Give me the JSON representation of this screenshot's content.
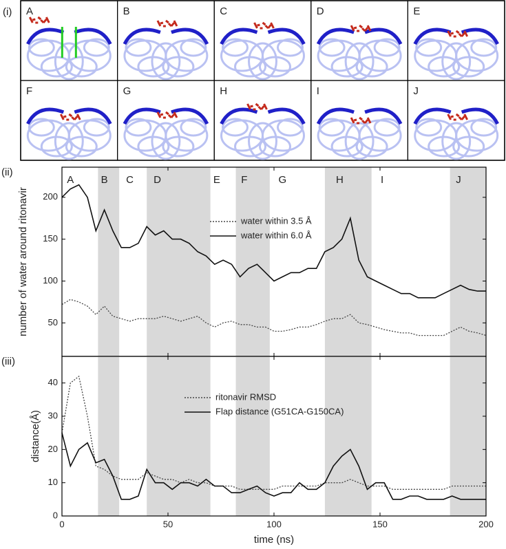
{
  "structures": {
    "label": "(i)",
    "frames": [
      "A",
      "B",
      "C",
      "D",
      "E",
      "F",
      "G",
      "H",
      "I",
      "J"
    ]
  },
  "chart_data": [
    {
      "type": "line",
      "label": "(ii)",
      "ylabel": "number of water around ritonavir",
      "xlim": [
        0,
        200
      ],
      "ylim": [
        10,
        236
      ],
      "yticks": [
        50,
        100,
        150,
        200
      ],
      "shaded": [
        [
          17,
          27
        ],
        [
          40,
          70
        ],
        [
          82,
          98
        ],
        [
          124,
          146
        ],
        [
          183,
          200
        ]
      ],
      "annotations": [
        {
          "text": "A",
          "x": 4
        },
        {
          "text": "B",
          "x": 20
        },
        {
          "text": "C",
          "x": 32
        },
        {
          "text": "D",
          "x": 45
        },
        {
          "text": "E",
          "x": 73
        },
        {
          "text": "F",
          "x": 86
        },
        {
          "text": "G",
          "x": 104
        },
        {
          "text": "H",
          "x": 131
        },
        {
          "text": "I",
          "x": 151
        },
        {
          "text": "J",
          "x": 187
        }
      ],
      "x": [
        0,
        4,
        8,
        12,
        16,
        20,
        24,
        28,
        32,
        36,
        40,
        44,
        48,
        52,
        56,
        60,
        64,
        68,
        72,
        76,
        80,
        84,
        88,
        92,
        96,
        100,
        104,
        108,
        112,
        116,
        120,
        124,
        128,
        132,
        136,
        140,
        144,
        148,
        152,
        156,
        160,
        164,
        168,
        172,
        176,
        180,
        184,
        188,
        192,
        196,
        200
      ],
      "series": [
        {
          "name": "water within 3.5 Å",
          "color": "#444444",
          "dash": "dotted",
          "values": [
            72,
            78,
            75,
            70,
            60,
            70,
            58,
            55,
            52,
            55,
            55,
            55,
            58,
            55,
            52,
            55,
            58,
            50,
            45,
            50,
            52,
            48,
            48,
            45,
            45,
            40,
            40,
            42,
            45,
            45,
            48,
            52,
            55,
            55,
            60,
            50,
            48,
            45,
            42,
            40,
            38,
            38,
            35,
            35,
            35,
            35,
            40,
            45,
            40,
            38,
            35
          ]
        },
        {
          "name": "water within 6.0 Å",
          "color": "#111111",
          "dash": "solid",
          "values": [
            200,
            210,
            215,
            200,
            160,
            185,
            160,
            140,
            140,
            145,
            165,
            155,
            160,
            150,
            150,
            145,
            135,
            130,
            120,
            125,
            120,
            105,
            115,
            120,
            110,
            100,
            105,
            110,
            110,
            115,
            115,
            135,
            140,
            150,
            175,
            125,
            105,
            100,
            95,
            90,
            85,
            85,
            80,
            80,
            80,
            85,
            90,
            95,
            90,
            88,
            88
          ]
        }
      ]
    },
    {
      "type": "line",
      "label": "(iii)",
      "ylabel": "distance(Å)",
      "xlabel": "time (ns)",
      "xlim": [
        0,
        200
      ],
      "ylim": [
        0,
        48
      ],
      "xticks": [
        0,
        50,
        100,
        150,
        200
      ],
      "yticks": [
        0,
        10,
        20,
        30,
        40
      ],
      "shaded": [
        [
          17,
          27
        ],
        [
          40,
          70
        ],
        [
          82,
          98
        ],
        [
          124,
          146
        ],
        [
          183,
          200
        ]
      ],
      "x": [
        0,
        4,
        8,
        12,
        16,
        20,
        24,
        28,
        32,
        36,
        40,
        44,
        48,
        52,
        56,
        60,
        64,
        68,
        72,
        76,
        80,
        84,
        88,
        92,
        96,
        100,
        104,
        108,
        112,
        116,
        120,
        124,
        128,
        132,
        136,
        140,
        144,
        148,
        152,
        156,
        160,
        164,
        168,
        172,
        176,
        180,
        184,
        188,
        192,
        196,
        200
      ],
      "series": [
        {
          "name": "ritonavir RMSD",
          "color": "#444444",
          "dash": "dotted",
          "values": [
            25,
            40,
            42,
            30,
            15,
            14,
            12,
            11,
            11,
            11,
            13,
            12,
            11,
            11,
            10,
            11,
            10,
            10,
            9,
            9,
            9,
            8,
            8,
            8,
            8,
            8,
            9,
            9,
            9,
            9,
            9,
            10,
            10,
            10,
            11,
            10,
            9,
            9,
            9,
            8,
            8,
            8,
            8,
            8,
            8,
            8,
            9,
            9,
            9,
            9,
            9
          ]
        },
        {
          "name": "Flap distance (G51CA-G150CA)",
          "color": "#111111",
          "dash": "solid",
          "values": [
            25,
            15,
            20,
            22,
            16,
            17,
            12,
            5,
            5,
            6,
            14,
            10,
            10,
            8,
            10,
            10,
            9,
            11,
            9,
            9,
            7,
            7,
            8,
            9,
            7,
            6,
            7,
            7,
            10,
            8,
            8,
            10,
            15,
            18,
            20,
            15,
            8,
            10,
            10,
            5,
            5,
            6,
            6,
            5,
            5,
            5,
            6,
            5,
            5,
            5,
            5
          ]
        }
      ]
    }
  ]
}
